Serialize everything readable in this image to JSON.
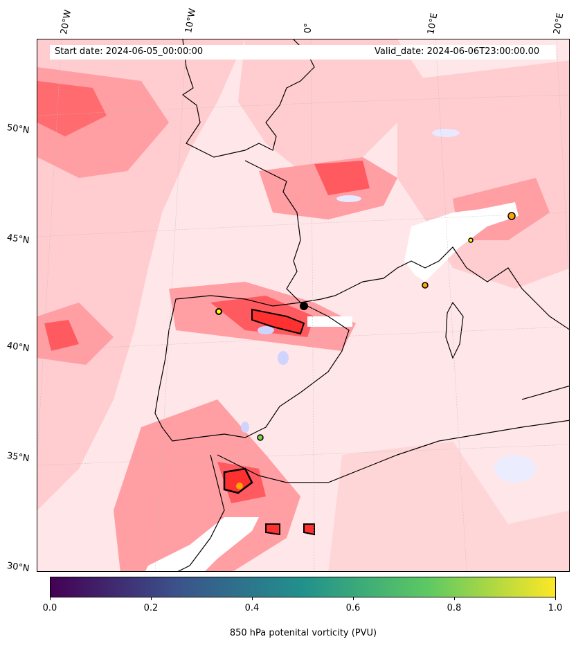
{
  "map": {
    "start_date": "Start date: 2024-06-05_00:00:00",
    "valid_date": "Valid_date: 2024-06-06T23:00:00.00",
    "lon_labels": [
      "20°W",
      "10°W",
      "0°",
      "10°E",
      "20°E"
    ],
    "lat_labels": [
      "50°N",
      "45°N",
      "40°N",
      "35°N",
      "30°N"
    ],
    "region": "Western Europe, Iberian Peninsula and North Africa"
  },
  "colorbar": {
    "title": "850 hPa potenital vorticity (PVU)",
    "ticks": [
      "0.0",
      "0.2",
      "0.4",
      "0.6",
      "0.8",
      "1.0"
    ],
    "range": [
      0.0,
      1.0
    ],
    "colormap": "viridis",
    "colors": [
      "#440154",
      "#3b528b",
      "#21918c",
      "#5ec962",
      "#fde725"
    ]
  },
  "field_colors": {
    "background": "#ffe6e8",
    "light": "#ffcccf",
    "medium": "#ff9ea3",
    "strong": "#ff5a5f",
    "max": "#ff2d2d",
    "negative": "#cfd4ff",
    "coast": "#000000"
  }
}
